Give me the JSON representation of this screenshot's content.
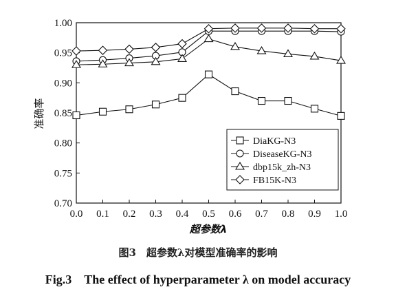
{
  "caption": {
    "chinese": "图3　超参数λ对模型准确率的影响",
    "english": "Fig.3　The effect of hyperparameter λ on model accuracy"
  },
  "chart_data": {
    "type": "line",
    "xlabel": "超参数λ",
    "ylabel": "准确率",
    "x": [
      0.0,
      0.1,
      0.2,
      0.3,
      0.4,
      0.5,
      0.6,
      0.7,
      0.8,
      0.9,
      1.0
    ],
    "x_tick_labels": [
      "0.0",
      "0.1",
      "0.2",
      "0.3",
      "0.4",
      "0.5",
      "0.6",
      "0.7",
      "0.8",
      "0.9",
      "1.0"
    ],
    "y_tick_labels": [
      "0.70",
      "0.75",
      "0.80",
      "0.85",
      "0.90",
      "0.95",
      "1.00"
    ],
    "ylim": [
      0.7,
      1.0
    ],
    "grid": false,
    "legend_position": "lower-right",
    "series": [
      {
        "name": "DiaKG-N3",
        "marker": "square",
        "values": [
          0.846,
          0.852,
          0.856,
          0.864,
          0.875,
          0.914,
          0.886,
          0.87,
          0.87,
          0.857,
          0.845
        ]
      },
      {
        "name": "DiseaseKG-N3",
        "marker": "circle",
        "values": [
          0.936,
          0.938,
          0.941,
          0.945,
          0.951,
          0.986,
          0.986,
          0.986,
          0.986,
          0.986,
          0.985
        ]
      },
      {
        "name": "dbp15k_zh-N3",
        "marker": "triangle",
        "values": [
          0.93,
          0.931,
          0.933,
          0.935,
          0.94,
          0.973,
          0.96,
          0.953,
          0.948,
          0.944,
          0.937
        ]
      },
      {
        "name": "FB15K-N3",
        "marker": "diamond",
        "values": [
          0.953,
          0.954,
          0.956,
          0.959,
          0.965,
          0.99,
          0.991,
          0.991,
          0.991,
          0.99,
          0.99
        ]
      }
    ]
  }
}
